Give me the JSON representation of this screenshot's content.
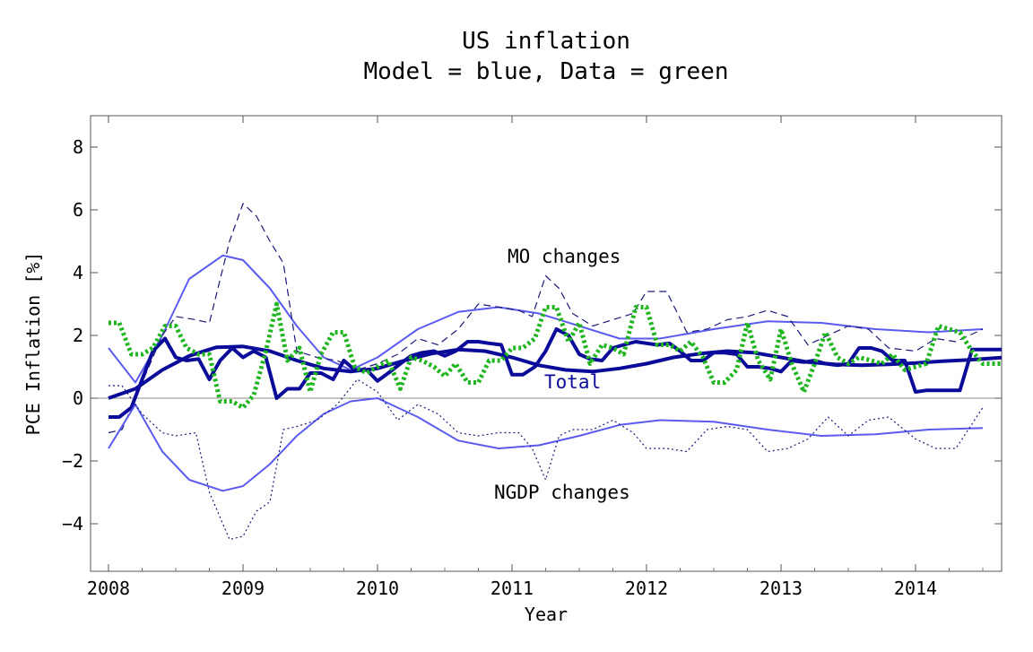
{
  "chart_data": {
    "type": "line",
    "title": "US inflation",
    "subtitle": "Model = blue, Data = green",
    "xlabel": "Year",
    "ylabel": "PCE Inflation [%]",
    "xlim": [
      2008.0,
      2014.66
    ],
    "ylim": [
      -5.5,
      9.0
    ],
    "x_ticks": [
      2008,
      2009,
      2010,
      2011,
      2012,
      2013,
      2014
    ],
    "y_ticks": [
      -4,
      -2,
      0,
      2,
      4,
      6,
      8
    ],
    "grid": false,
    "zero_line": true,
    "annotations": {
      "m0": "MO changes",
      "total": "Total",
      "ngdp": "NGDP changes"
    },
    "colors": {
      "model_light": "#5b5bef",
      "model_dark": "#0b0b9a",
      "data": "#1fb51f",
      "dashed": "#1a1a7a",
      "zero_line": "#888888"
    },
    "series": [
      {
        "role": "m0-smooth",
        "style": "solid-thin",
        "x": [
          2008.0,
          2008.2,
          2008.4,
          2008.6,
          2008.85,
          2009.0,
          2009.2,
          2009.4,
          2009.6,
          2009.8,
          2010.0,
          2010.3,
          2010.6,
          2010.9,
          2011.2,
          2011.5,
          2011.8,
          2012.1,
          2012.5,
          2012.9,
          2013.3,
          2013.7,
          2014.1,
          2014.5
        ],
        "y": [
          1.6,
          0.5,
          2.0,
          3.8,
          4.55,
          4.4,
          3.5,
          2.3,
          1.3,
          0.9,
          1.3,
          2.2,
          2.75,
          2.9,
          2.7,
          2.3,
          1.9,
          1.9,
          2.2,
          2.45,
          2.4,
          2.2,
          2.1,
          2.2
        ]
      },
      {
        "role": "m0-dashed",
        "style": "dashed",
        "x": [
          2008.0,
          2008.1,
          2008.25,
          2008.4,
          2008.5,
          2008.65,
          2008.75,
          2008.9,
          2009.0,
          2009.1,
          2009.2,
          2009.3,
          2009.4,
          2009.55,
          2009.7,
          2009.85,
          2010.0,
          2010.15,
          2010.3,
          2010.45,
          2010.6,
          2010.75,
          2010.9,
          2011.05,
          2011.15,
          2011.25,
          2011.35,
          2011.45,
          2011.6,
          2011.75,
          2011.9,
          2012.0,
          2012.15,
          2012.3,
          2012.45,
          2012.6,
          2012.75,
          2012.9,
          2013.05,
          2013.2,
          2013.35,
          2013.5,
          2013.65,
          2013.8,
          2014.0,
          2014.15,
          2014.3,
          2014.5
        ],
        "y": [
          -1.1,
          -1.0,
          0.5,
          2.0,
          2.6,
          2.5,
          2.4,
          5.0,
          6.2,
          5.8,
          5.0,
          4.3,
          1.5,
          1.3,
          1.2,
          0.9,
          1.1,
          1.4,
          1.9,
          1.7,
          2.2,
          3.0,
          2.9,
          2.8,
          2.6,
          3.9,
          3.5,
          2.7,
          2.3,
          2.5,
          2.7,
          3.4,
          3.4,
          2.1,
          2.2,
          2.5,
          2.6,
          2.8,
          2.6,
          1.7,
          2.0,
          2.3,
          2.2,
          1.6,
          1.5,
          1.9,
          1.8,
          2.2
        ]
      },
      {
        "role": "total-smooth",
        "style": "solid-thick",
        "x": [
          2008.0,
          2008.2,
          2008.4,
          2008.6,
          2008.8,
          2009.0,
          2009.2,
          2009.4,
          2009.6,
          2009.8,
          2010.0,
          2010.2,
          2010.4,
          2010.6,
          2010.8,
          2011.0,
          2011.2,
          2011.4,
          2011.6,
          2011.8,
          2012.0,
          2012.2,
          2012.4,
          2012.6,
          2012.8,
          2013.0,
          2013.2,
          2013.4,
          2013.6,
          2013.8,
          2014.0,
          2014.2,
          2014.4,
          2014.66
        ],
        "y": [
          0.0,
          0.3,
          0.9,
          1.35,
          1.62,
          1.65,
          1.5,
          1.2,
          0.95,
          0.85,
          0.95,
          1.2,
          1.42,
          1.55,
          1.5,
          1.3,
          1.05,
          0.9,
          0.85,
          0.95,
          1.1,
          1.3,
          1.42,
          1.5,
          1.45,
          1.3,
          1.15,
          1.08,
          1.05,
          1.08,
          1.12,
          1.18,
          1.22,
          1.3
        ]
      },
      {
        "role": "total-jagged",
        "style": "solid-thick",
        "x": [
          2008.0,
          2008.08,
          2008.17,
          2008.33,
          2008.42,
          2008.5,
          2008.58,
          2008.67,
          2008.75,
          2008.83,
          2008.92,
          2009.0,
          2009.08,
          2009.17,
          2009.25,
          2009.33,
          2009.42,
          2009.5,
          2009.58,
          2009.67,
          2009.75,
          2009.83,
          2009.92,
          2010.0,
          2010.08,
          2010.17,
          2010.25,
          2010.33,
          2010.42,
          2010.5,
          2010.58,
          2010.67,
          2010.75,
          2010.83,
          2010.92,
          2011.0,
          2011.08,
          2011.17,
          2011.25,
          2011.33,
          2011.42,
          2011.5,
          2011.58,
          2011.67,
          2011.75,
          2011.83,
          2011.92,
          2012.0,
          2012.08,
          2012.17,
          2012.25,
          2012.33,
          2012.42,
          2012.5,
          2012.58,
          2012.67,
          2012.75,
          2012.83,
          2012.92,
          2013.0,
          2013.08,
          2013.17,
          2013.25,
          2013.33,
          2013.42,
          2013.5,
          2013.58,
          2013.67,
          2013.75,
          2013.83,
          2013.92,
          2014.0,
          2014.08,
          2014.17,
          2014.25,
          2014.33,
          2014.42,
          2014.5,
          2014.58,
          2014.66
        ],
        "y": [
          -0.6,
          -0.6,
          -0.3,
          1.5,
          1.9,
          1.3,
          1.2,
          1.25,
          0.6,
          1.2,
          1.6,
          1.3,
          1.5,
          1.3,
          0.0,
          0.3,
          0.3,
          0.8,
          0.8,
          0.6,
          1.2,
          0.9,
          0.9,
          0.55,
          0.8,
          1.1,
          1.35,
          1.45,
          1.5,
          1.35,
          1.5,
          1.8,
          1.8,
          1.75,
          1.7,
          0.75,
          0.75,
          1.0,
          1.5,
          2.2,
          2.0,
          1.4,
          1.25,
          1.2,
          1.6,
          1.7,
          1.8,
          1.75,
          1.7,
          1.75,
          1.5,
          1.2,
          1.2,
          1.45,
          1.45,
          1.4,
          1.0,
          1.0,
          0.95,
          0.85,
          1.2,
          1.15,
          1.2,
          1.1,
          1.05,
          1.1,
          1.6,
          1.6,
          1.5,
          1.2,
          1.2,
          0.2,
          0.25,
          0.25,
          0.25,
          0.25,
          1.55,
          1.55,
          1.55,
          1.55
        ]
      },
      {
        "role": "data",
        "style": "dotted-thick",
        "x": [
          2008.0,
          2008.08,
          2008.17,
          2008.25,
          2008.33,
          2008.42,
          2008.5,
          2008.58,
          2008.67,
          2008.75,
          2008.83,
          2008.92,
          2009.0,
          2009.08,
          2009.17,
          2009.25,
          2009.33,
          2009.42,
          2009.5,
          2009.58,
          2009.67,
          2009.75,
          2009.83,
          2009.92,
          2010.0,
          2010.08,
          2010.17,
          2010.25,
          2010.33,
          2010.42,
          2010.5,
          2010.58,
          2010.67,
          2010.75,
          2010.83,
          2010.92,
          2011.0,
          2011.08,
          2011.17,
          2011.25,
          2011.33,
          2011.42,
          2011.5,
          2011.58,
          2011.67,
          2011.75,
          2011.83,
          2011.92,
          2012.0,
          2012.08,
          2012.17,
          2012.25,
          2012.33,
          2012.42,
          2012.5,
          2012.58,
          2012.67,
          2012.75,
          2012.83,
          2012.92,
          2013.0,
          2013.08,
          2013.17,
          2013.25,
          2013.33,
          2013.42,
          2013.5,
          2013.58,
          2013.67,
          2013.75,
          2013.83,
          2013.92,
          2014.0,
          2014.08,
          2014.17,
          2014.25,
          2014.33,
          2014.42,
          2014.5,
          2014.58,
          2014.66
        ],
        "y": [
          2.4,
          2.4,
          1.4,
          1.4,
          1.6,
          2.3,
          2.3,
          1.6,
          1.4,
          1.4,
          -0.1,
          -0.1,
          -0.3,
          0.1,
          1.5,
          3.0,
          1.2,
          1.6,
          0.2,
          1.4,
          2.1,
          2.1,
          1.0,
          0.8,
          1.0,
          1.2,
          0.3,
          1.3,
          1.2,
          1.0,
          0.7,
          1.1,
          0.5,
          0.5,
          1.2,
          1.2,
          1.6,
          1.6,
          1.9,
          2.9,
          2.9,
          1.8,
          2.4,
          1.1,
          1.7,
          1.6,
          1.4,
          2.9,
          2.9,
          1.7,
          1.7,
          1.5,
          1.8,
          1.3,
          0.5,
          0.5,
          0.9,
          2.4,
          1.2,
          0.6,
          2.2,
          1.1,
          0.2,
          1.1,
          2.1,
          1.3,
          1.1,
          1.3,
          1.2,
          1.1,
          1.4,
          0.9,
          1.0,
          1.1,
          2.3,
          2.2,
          2.1,
          1.5,
          1.1,
          1.1,
          1.1
        ]
      },
      {
        "role": "ngdp-smooth",
        "style": "solid-thin",
        "x": [
          2008.0,
          2008.2,
          2008.4,
          2008.6,
          2008.85,
          2009.0,
          2009.2,
          2009.4,
          2009.6,
          2009.8,
          2010.0,
          2010.3,
          2010.6,
          2010.9,
          2011.2,
          2011.5,
          2011.8,
          2012.1,
          2012.5,
          2012.9,
          2013.3,
          2013.7,
          2014.1,
          2014.5
        ],
        "y": [
          -1.6,
          -0.2,
          -1.7,
          -2.6,
          -2.95,
          -2.8,
          -2.1,
          -1.2,
          -0.5,
          -0.1,
          0.0,
          -0.6,
          -1.35,
          -1.6,
          -1.5,
          -1.2,
          -0.85,
          -0.7,
          -0.75,
          -1.0,
          -1.2,
          -1.15,
          -1.0,
          -0.95
        ]
      },
      {
        "role": "ngdp-dotted",
        "style": "dotted-thin",
        "x": [
          2008.0,
          2008.1,
          2008.25,
          2008.4,
          2008.5,
          2008.65,
          2008.75,
          2008.9,
          2009.0,
          2009.1,
          2009.2,
          2009.3,
          2009.4,
          2009.55,
          2009.7,
          2009.85,
          2010.0,
          2010.15,
          2010.3,
          2010.45,
          2010.6,
          2010.75,
          2010.9,
          2011.05,
          2011.15,
          2011.25,
          2011.35,
          2011.45,
          2011.6,
          2011.75,
          2011.9,
          2012.0,
          2012.15,
          2012.3,
          2012.45,
          2012.6,
          2012.75,
          2012.9,
          2013.05,
          2013.2,
          2013.35,
          2013.5,
          2013.65,
          2013.8,
          2014.0,
          2014.15,
          2014.3,
          2014.5
        ],
        "y": [
          0.4,
          0.4,
          -0.5,
          -1.1,
          -1.2,
          -1.1,
          -3.0,
          -4.5,
          -4.4,
          -3.6,
          -3.3,
          -1.0,
          -0.9,
          -0.7,
          -0.2,
          0.6,
          0.2,
          -0.7,
          -0.2,
          -0.5,
          -1.1,
          -1.2,
          -1.1,
          -1.1,
          -1.6,
          -2.6,
          -1.2,
          -1.0,
          -1.0,
          -0.7,
          -1.1,
          -1.6,
          -1.6,
          -1.7,
          -1.0,
          -0.9,
          -1.0,
          -1.7,
          -1.6,
          -1.3,
          -0.6,
          -1.2,
          -0.7,
          -0.6,
          -1.3,
          -1.6,
          -1.6,
          -0.3
        ]
      }
    ]
  }
}
